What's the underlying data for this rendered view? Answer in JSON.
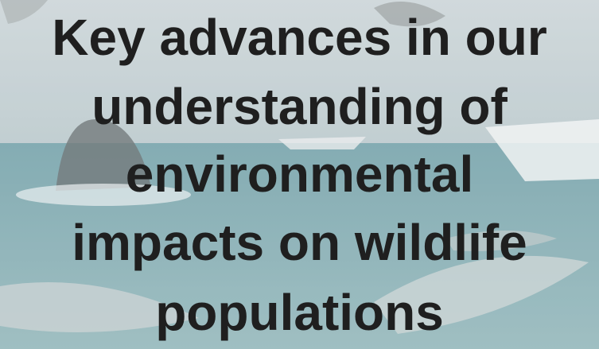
{
  "title_lines": [
    "Key advances in our",
    "understanding of",
    "environmental",
    "impacts on wildlife",
    "populations"
  ]
}
